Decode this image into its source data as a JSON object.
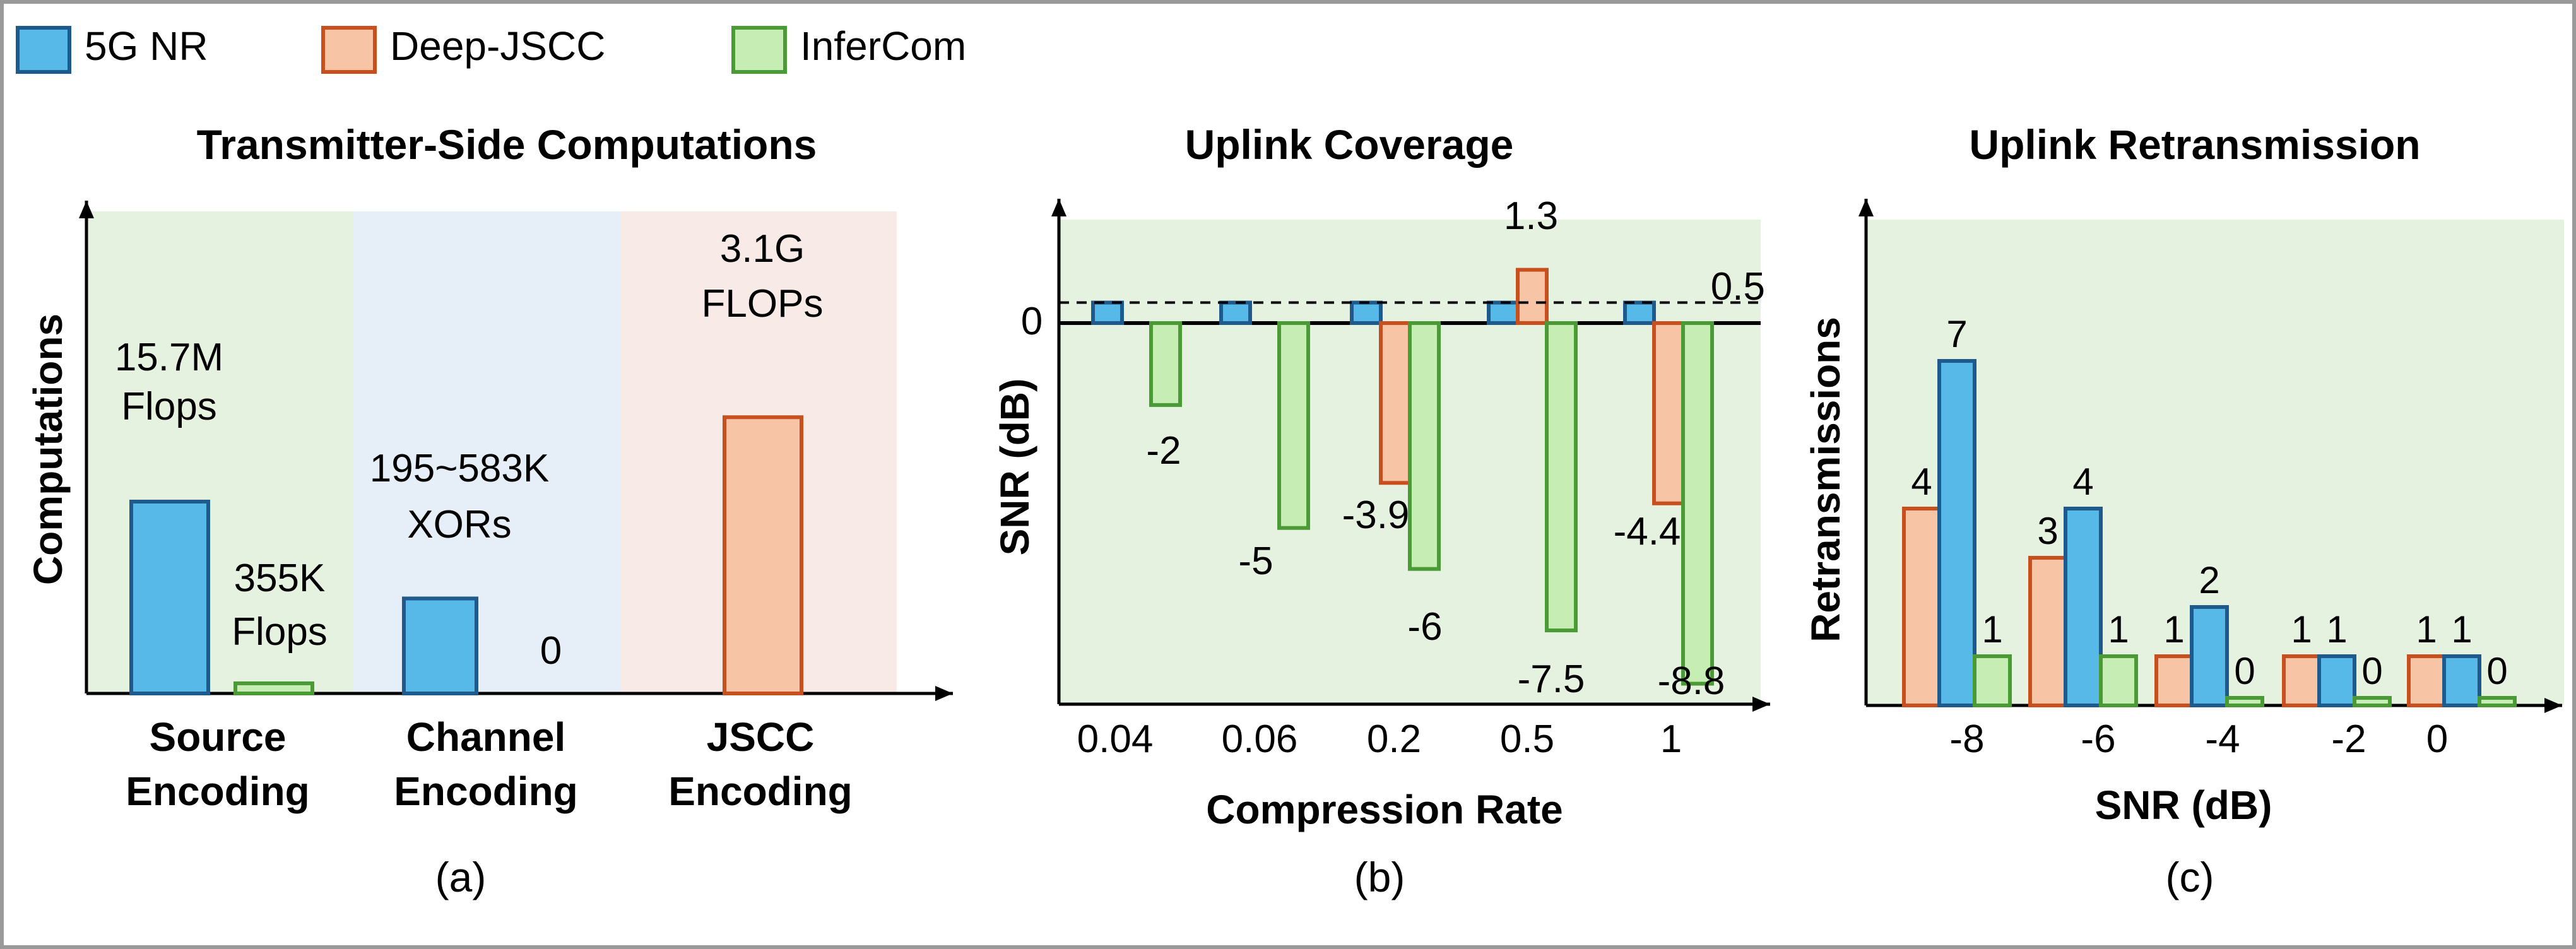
{
  "colors": {
    "blue_fill": "#56B9E8",
    "blue_stroke": "#1F5A8C",
    "orange_fill": "#F7C4A5",
    "orange_stroke": "#C8501E",
    "green_fill": "#C6EDB3",
    "green_stroke": "#4A9A35",
    "panel_green": "#E6F2E0",
    "panel_blue": "#E6EEF7",
    "panel_pink": "#F8EAE6"
  },
  "legend": [
    {
      "name": "5G NR",
      "color": "blue"
    },
    {
      "name": "Deep-JSCC",
      "color": "orange"
    },
    {
      "name": "InferCom",
      "color": "green"
    }
  ],
  "chart_data": [
    {
      "type": "bar",
      "panel": "(a)",
      "title": "Transmitter-Side Computations",
      "ylabel": "Computations",
      "categories": [
        [
          "Source",
          "Encoding"
        ],
        [
          "Channel",
          "Encoding"
        ],
        [
          "JSCC",
          "Encoding"
        ]
      ],
      "y_scale": "not shown (no tick labels)",
      "bars": [
        {
          "category": 0,
          "series": "5G NR",
          "label": [
            "15.7M",
            "Flops"
          ]
        },
        {
          "category": 0,
          "series": "InferCom",
          "label": [
            "355K",
            "Flops"
          ]
        },
        {
          "category": 1,
          "series": "5G NR",
          "label": [
            "195~583K",
            "XORs"
          ]
        },
        {
          "category": 1,
          "series": "InferCom",
          "value": 0,
          "label": [
            "0"
          ]
        },
        {
          "category": 2,
          "series": "Deep-JSCC",
          "label": [
            "3.1G",
            "FLOPs"
          ]
        }
      ],
      "caption": "(a)"
    },
    {
      "type": "bar",
      "panel": "(b)",
      "title": "Uplink Coverage",
      "xlabel": "Compression Rate",
      "ylabel": "SNR (dB)",
      "categories": [
        "0.04",
        "0.06",
        "0.2",
        "0.5",
        "1"
      ],
      "y_tick": "0",
      "reference_line": {
        "value": 0.5,
        "label": "0.5"
      },
      "series": [
        {
          "name": "5G NR",
          "values": [
            0.5,
            0.5,
            0.5,
            0.5,
            0.5
          ]
        },
        {
          "name": "Deep-JSCC",
          "values": [
            null,
            null,
            -3.9,
            1.3,
            -4.4
          ]
        },
        {
          "name": "InferCom",
          "values": [
            -2,
            -5,
            -6,
            -7.5,
            -8.8
          ]
        }
      ],
      "data_labels": {
        "Deep-JSCC": [
          "",
          "",
          "-3.9",
          "1.3",
          "-4.4"
        ],
        "InferCom": [
          "-2",
          "-5",
          "-6",
          "-7.5",
          "-8.8"
        ]
      },
      "caption": "(b)"
    },
    {
      "type": "bar",
      "panel": "(c)",
      "title": "Uplink Retransmission",
      "xlabel": "SNR (dB)",
      "ylabel": "Retransmissions",
      "categories": [
        "-8",
        "-6",
        "-4",
        "-2",
        "0"
      ],
      "series": [
        {
          "name": "Deep-JSCC",
          "values": [
            4,
            3,
            1,
            1,
            1
          ]
        },
        {
          "name": "5G NR",
          "values": [
            7,
            4,
            2,
            1,
            1
          ]
        },
        {
          "name": "InferCom",
          "values": [
            1,
            1,
            0,
            0,
            0
          ]
        }
      ],
      "caption": "(c)"
    }
  ]
}
